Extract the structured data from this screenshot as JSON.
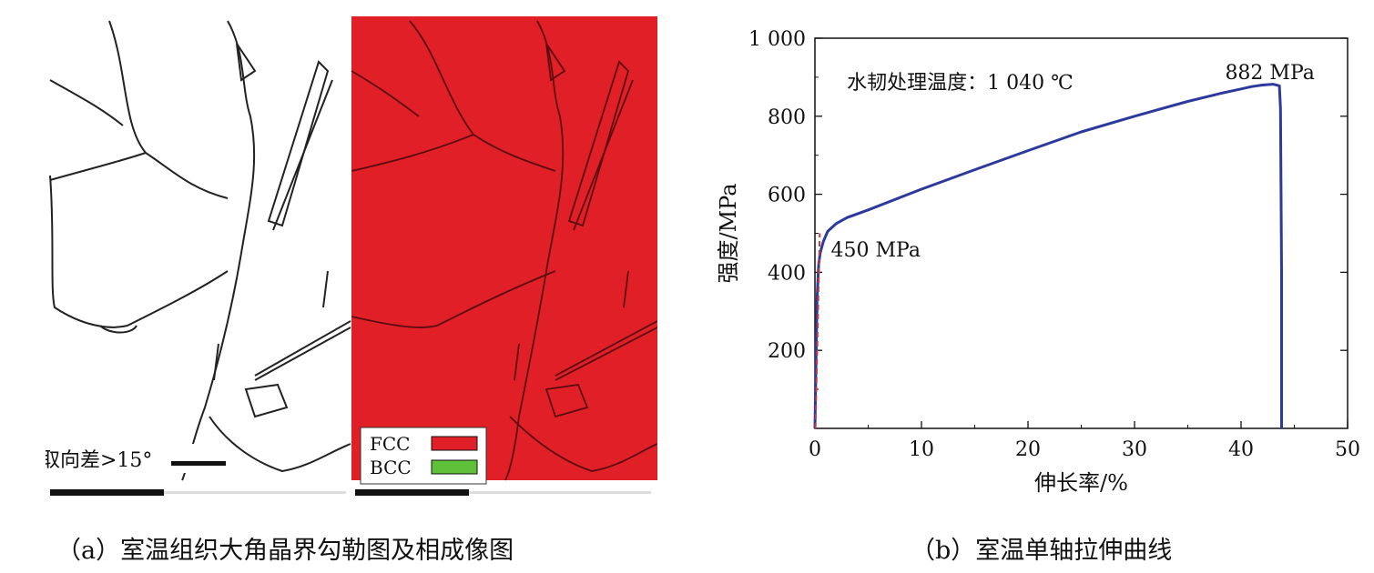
{
  "panel_a": {
    "scale_label": "取向差>15°",
    "legend": [
      {
        "label": "FCC",
        "color": "#e11f26"
      },
      {
        "label": "BCC",
        "color": "#5fc13a"
      }
    ],
    "phase_map_color": "#e11f26",
    "caption": "（a）室温组织大角晶界勾勒图及相成像图"
  },
  "panel_b": {
    "caption": "（b）室温单轴拉伸曲线"
  },
  "chart_data": {
    "type": "line",
    "xlabel": "伸长率/%",
    "ylabel": "强度/MPa",
    "xlim": [
      0,
      50
    ],
    "ylim": [
      0,
      1000
    ],
    "x_ticks": [
      0,
      10,
      20,
      30,
      40,
      50
    ],
    "y_ticks": [
      200,
      400,
      600,
      800,
      1000
    ],
    "y_tick_labels": [
      "200",
      "400",
      "600",
      "800",
      "1 000"
    ],
    "grid": false,
    "series": [
      {
        "color": "#2b3a9c",
        "x": [
          0,
          0.2,
          0.35,
          0.5,
          0.8,
          1.2,
          2,
          3,
          5,
          10,
          15,
          20,
          25,
          30,
          35,
          38,
          40,
          41,
          42,
          43,
          43.6,
          43.7,
          43.8,
          43.8
        ],
        "y": [
          0,
          330,
          420,
          450,
          480,
          505,
          525,
          540,
          560,
          613,
          663,
          712,
          760,
          800,
          838,
          858,
          870,
          876,
          880,
          882,
          878,
          820,
          400,
          0
        ]
      },
      {
        "color": "#c9373f",
        "style": "dashed",
        "x": [
          0.05,
          0.45
        ],
        "y": [
          0,
          500
        ]
      }
    ],
    "annotations": [
      {
        "text": "水韧处理温度：1 040 ℃",
        "x": 3,
        "y": 870
      },
      {
        "text": "882 MPa",
        "x": 38.5,
        "y": 895
      },
      {
        "text": "450 MPa",
        "x": 1.5,
        "y": 440
      }
    ]
  }
}
